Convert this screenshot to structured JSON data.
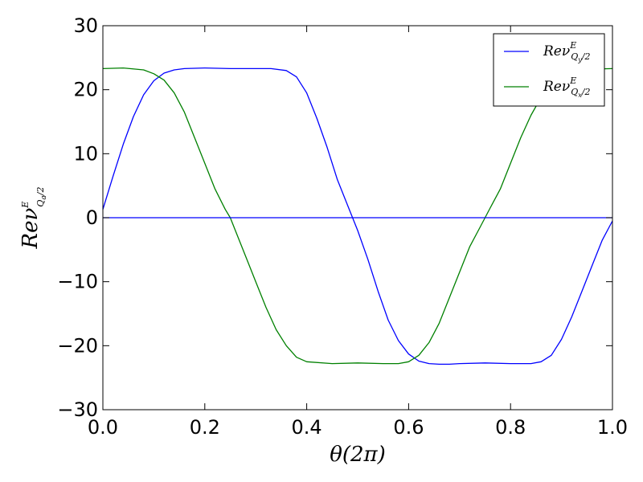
{
  "chart_data": {
    "type": "line",
    "xlabel": "θ(2π)",
    "ylabel": {
      "base": "Reν",
      "sup": "E",
      "sub": "Q",
      "sub_index": "a",
      "sub_tail": "/2"
    },
    "xlim": [
      0.0,
      1.0
    ],
    "ylim": [
      -30,
      30
    ],
    "xticks": [
      0.0,
      0.2,
      0.4,
      0.6,
      0.8,
      1.0
    ],
    "xtick_labels": [
      "0.0",
      "0.2",
      "0.4",
      "0.6",
      "0.8",
      "1.0"
    ],
    "yticks": [
      -30,
      -20,
      -10,
      0,
      10,
      20,
      30
    ],
    "ytick_labels": [
      "−30",
      "−20",
      "−10",
      "0",
      "10",
      "20",
      "30"
    ],
    "grid": false,
    "legend_position": "top-right",
    "series": [
      {
        "name": "Reν^E_{Q_y/2}",
        "legend": {
          "base": "Reν",
          "sup": "E",
          "sub": "Q",
          "sub_index": "y",
          "sub_tail": "/2"
        },
        "color": "#0000ff",
        "x": [
          0.0,
          0.02,
          0.04,
          0.06,
          0.08,
          0.1,
          0.12,
          0.14,
          0.16,
          0.18,
          0.2,
          0.25,
          0.3,
          0.33,
          0.36,
          0.38,
          0.4,
          0.42,
          0.44,
          0.46,
          0.48,
          0.5,
          0.52,
          0.54,
          0.56,
          0.58,
          0.6,
          0.62,
          0.64,
          0.66,
          0.68,
          0.7,
          0.75,
          0.8,
          0.84,
          0.86,
          0.88,
          0.9,
          0.92,
          0.94,
          0.96,
          0.98,
          1.0
        ],
        "y": [
          1.3,
          6.5,
          11.5,
          15.8,
          19.2,
          21.4,
          22.6,
          23.1,
          23.3,
          23.35,
          23.4,
          23.3,
          23.3,
          23.3,
          23.0,
          22.0,
          19.5,
          15.5,
          11.0,
          6.0,
          2.0,
          -2.0,
          -6.5,
          -11.5,
          -16.0,
          -19.2,
          -21.3,
          -22.4,
          -22.8,
          -22.9,
          -22.9,
          -22.8,
          -22.7,
          -22.8,
          -22.8,
          -22.5,
          -21.5,
          -19.0,
          -15.5,
          -11.5,
          -7.5,
          -3.5,
          -0.5
        ]
      },
      {
        "name": "Reν^E_{Q_x/2}",
        "legend": {
          "base": "Reν",
          "sup": "E",
          "sub": "Q",
          "sub_index": "x",
          "sub_tail": "/2"
        },
        "color": "#008000",
        "x": [
          0.0,
          0.04,
          0.08,
          0.1,
          0.12,
          0.14,
          0.16,
          0.18,
          0.2,
          0.22,
          0.24,
          0.25,
          0.26,
          0.28,
          0.3,
          0.32,
          0.34,
          0.36,
          0.38,
          0.4,
          0.45,
          0.5,
          0.55,
          0.58,
          0.6,
          0.62,
          0.64,
          0.66,
          0.68,
          0.7,
          0.72,
          0.74,
          0.75,
          0.76,
          0.78,
          0.8,
          0.82,
          0.84,
          0.86,
          0.88,
          0.9,
          0.95,
          1.0
        ],
        "y": [
          23.3,
          23.4,
          23.1,
          22.5,
          21.5,
          19.5,
          16.5,
          12.5,
          8.5,
          4.5,
          1.3,
          0.0,
          -2.0,
          -6.0,
          -10.0,
          -14.0,
          -17.5,
          -20.0,
          -21.8,
          -22.5,
          -22.8,
          -22.7,
          -22.8,
          -22.8,
          -22.5,
          -21.5,
          -19.5,
          -16.5,
          -12.5,
          -8.5,
          -4.5,
          -1.5,
          0.0,
          1.5,
          4.5,
          8.5,
          12.5,
          16.0,
          18.8,
          21.0,
          22.6,
          23.2,
          23.3
        ]
      },
      {
        "name": "",
        "color": "#0000ff",
        "x": [
          0.0,
          1.0
        ],
        "y": [
          0.0,
          0.0
        ]
      }
    ]
  }
}
